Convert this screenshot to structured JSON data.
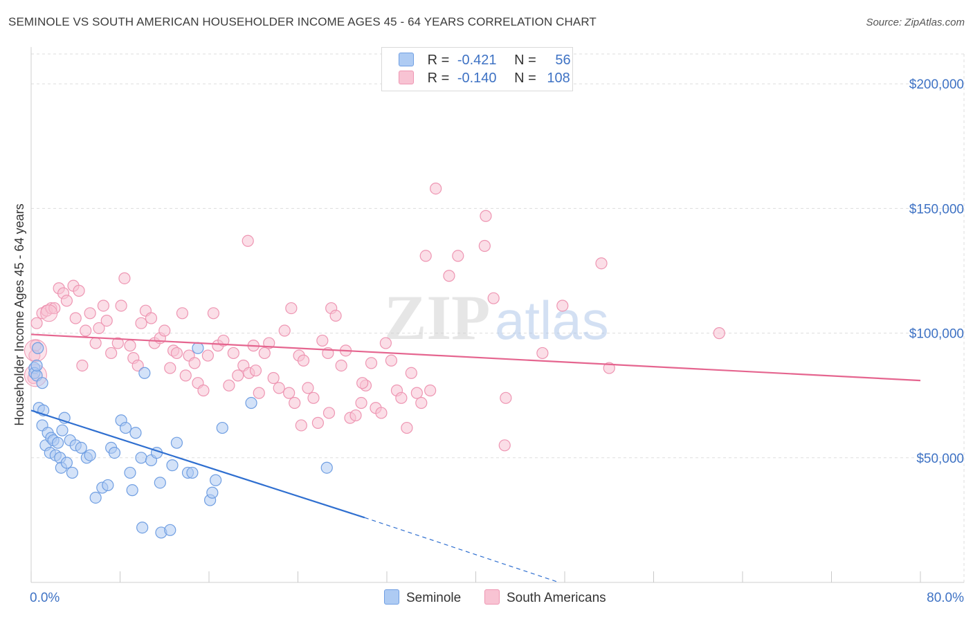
{
  "header": {
    "title": "SEMINOLE VS SOUTH AMERICAN HOUSEHOLDER INCOME AGES 45 - 64 YEARS CORRELATION CHART",
    "source": "Source: ZipAtlas.com"
  },
  "watermark": {
    "zip": "ZIP",
    "atlas": "atlas"
  },
  "legend": {
    "rows": [
      {
        "r_label": "R =",
        "r_value": "-0.421",
        "n_label": "N =",
        "n_value": "56"
      },
      {
        "r_label": "R =",
        "r_value": "-0.140",
        "n_label": "N =",
        "n_value": "108"
      }
    ]
  },
  "bottom_legend": {
    "items": [
      "Seminole",
      "South Americans"
    ]
  },
  "colors": {
    "seminole_fill": "#aecbf3",
    "seminole_stroke": "#6f9ee2",
    "seminole_line": "#2f6fd0",
    "south_fill": "#f8c3d3",
    "south_stroke": "#ee95b2",
    "south_line": "#e5658f",
    "axis_text": "#3e72c4",
    "grid": "#dddddd"
  },
  "chart_data": {
    "type": "scatter",
    "title": "SEMINOLE VS SOUTH AMERICAN HOUSEHOLDER INCOME AGES 45 - 64 YEARS CORRELATION CHART",
    "xlabel": "",
    "ylabel": "Householder Income Ages 45 - 64 years",
    "xlim": [
      0,
      80
    ],
    "ylim": [
      0,
      212000
    ],
    "x_tick_labels": [
      "0.0%",
      "80.0%"
    ],
    "y_ticks": [
      50000,
      100000,
      150000,
      200000
    ],
    "y_tick_labels": [
      "$50,000",
      "$100,000",
      "$150,000",
      "$200,000"
    ],
    "grid": true,
    "legend_position": "top-center",
    "series": [
      {
        "name": "Seminole",
        "r": -0.421,
        "n": 56,
        "trend": {
          "x": [
            0,
            30
          ],
          "y": [
            69000,
            26000
          ],
          "dashed_to": [
            47.5,
            0
          ]
        },
        "points": [
          [
            0.3,
            86000
          ],
          [
            0.3,
            84000
          ],
          [
            0.5,
            83000
          ],
          [
            0.5,
            87000
          ],
          [
            0.6,
            94000
          ],
          [
            0.7,
            70000
          ],
          [
            1.0,
            63000
          ],
          [
            1.0,
            80000
          ],
          [
            1.1,
            69000
          ],
          [
            1.3,
            55000
          ],
          [
            1.5,
            60000
          ],
          [
            1.7,
            52000
          ],
          [
            1.8,
            58000
          ],
          [
            2.0,
            57000
          ],
          [
            2.2,
            51000
          ],
          [
            2.4,
            56000
          ],
          [
            2.6,
            50000
          ],
          [
            2.7,
            46000
          ],
          [
            2.8,
            61000
          ],
          [
            3.0,
            66000
          ],
          [
            3.2,
            48000
          ],
          [
            3.5,
            57000
          ],
          [
            3.7,
            44000
          ],
          [
            4.0,
            55000
          ],
          [
            4.5,
            54000
          ],
          [
            5.0,
            50000
          ],
          [
            5.3,
            51000
          ],
          [
            5.8,
            34000
          ],
          [
            6.4,
            38000
          ],
          [
            6.9,
            39000
          ],
          [
            7.2,
            54000
          ],
          [
            7.5,
            52000
          ],
          [
            8.1,
            65000
          ],
          [
            8.5,
            62000
          ],
          [
            8.9,
            44000
          ],
          [
            9.1,
            37000
          ],
          [
            9.4,
            60000
          ],
          [
            9.9,
            50000
          ],
          [
            10.2,
            84000
          ],
          [
            10.8,
            49000
          ],
          [
            11.3,
            52000
          ],
          [
            11.6,
            40000
          ],
          [
            12.7,
            47000
          ],
          [
            13.1,
            56000
          ],
          [
            14.1,
            44000
          ],
          [
            14.5,
            44000
          ],
          [
            15.0,
            94000
          ],
          [
            16.1,
            33000
          ],
          [
            16.3,
            36000
          ],
          [
            16.6,
            41000
          ],
          [
            17.2,
            62000
          ],
          [
            19.8,
            72000
          ],
          [
            26.6,
            46000
          ],
          [
            11.7,
            20000
          ],
          [
            10.0,
            22000
          ],
          [
            12.5,
            21000
          ]
        ]
      },
      {
        "name": "South Americans",
        "r": -0.14,
        "n": 108,
        "trend": {
          "x": [
            0,
            80
          ],
          "y": [
            99500,
            81000
          ]
        },
        "points": [
          [
            0.2,
            82000
          ],
          [
            0.3,
            91000
          ],
          [
            0.4,
            95000
          ],
          [
            0.5,
            104000
          ],
          [
            1.0,
            108000
          ],
          [
            1.4,
            109000
          ],
          [
            1.8,
            110000
          ],
          [
            2.1,
            110000
          ],
          [
            2.5,
            118000
          ],
          [
            2.9,
            116000
          ],
          [
            3.2,
            113000
          ],
          [
            3.8,
            119000
          ],
          [
            4.0,
            106000
          ],
          [
            4.3,
            117000
          ],
          [
            4.6,
            87000
          ],
          [
            4.9,
            101000
          ],
          [
            5.3,
            108000
          ],
          [
            5.8,
            96000
          ],
          [
            6.1,
            102000
          ],
          [
            6.5,
            111000
          ],
          [
            6.8,
            105000
          ],
          [
            7.2,
            92000
          ],
          [
            7.8,
            96000
          ],
          [
            8.1,
            111000
          ],
          [
            8.4,
            122000
          ],
          [
            8.9,
            95000
          ],
          [
            9.2,
            90000
          ],
          [
            9.6,
            87000
          ],
          [
            9.9,
            104000
          ],
          [
            10.3,
            109000
          ],
          [
            10.8,
            106000
          ],
          [
            11.1,
            96000
          ],
          [
            11.6,
            98000
          ],
          [
            12.0,
            101000
          ],
          [
            12.5,
            86000
          ],
          [
            12.8,
            93000
          ],
          [
            13.1,
            92000
          ],
          [
            13.6,
            108000
          ],
          [
            13.9,
            83000
          ],
          [
            14.2,
            91000
          ],
          [
            14.7,
            88000
          ],
          [
            15.0,
            80000
          ],
          [
            15.5,
            77000
          ],
          [
            15.9,
            91000
          ],
          [
            16.4,
            108000
          ],
          [
            16.8,
            95000
          ],
          [
            17.3,
            97000
          ],
          [
            17.8,
            79000
          ],
          [
            18.2,
            92000
          ],
          [
            18.6,
            83000
          ],
          [
            19.1,
            87000
          ],
          [
            19.6,
            84000
          ],
          [
            20.0,
            95000
          ],
          [
            20.5,
            76000
          ],
          [
            21.0,
            92000
          ],
          [
            21.4,
            96000
          ],
          [
            21.8,
            82000
          ],
          [
            22.3,
            78000
          ],
          [
            22.8,
            101000
          ],
          [
            23.2,
            76000
          ],
          [
            23.7,
            72000
          ],
          [
            24.1,
            91000
          ],
          [
            24.5,
            89000
          ],
          [
            24.9,
            78000
          ],
          [
            25.4,
            74000
          ],
          [
            25.8,
            64000
          ],
          [
            26.2,
            97000
          ],
          [
            26.7,
            92000
          ],
          [
            27.0,
            110000
          ],
          [
            27.4,
            107000
          ],
          [
            27.9,
            87000
          ],
          [
            28.3,
            93000
          ],
          [
            28.7,
            66000
          ],
          [
            29.2,
            67000
          ],
          [
            29.7,
            72000
          ],
          [
            30.1,
            79000
          ],
          [
            30.6,
            88000
          ],
          [
            31.0,
            70000
          ],
          [
            31.5,
            68000
          ],
          [
            31.9,
            96000
          ],
          [
            32.4,
            89000
          ],
          [
            32.9,
            77000
          ],
          [
            33.3,
            74000
          ],
          [
            33.8,
            62000
          ],
          [
            34.2,
            84000
          ],
          [
            34.7,
            76000
          ],
          [
            35.1,
            72000
          ],
          [
            35.5,
            131000
          ],
          [
            35.9,
            77000
          ],
          [
            36.4,
            158000
          ],
          [
            37.6,
            123000
          ],
          [
            38.4,
            131000
          ],
          [
            40.8,
            135000
          ],
          [
            40.9,
            147000
          ],
          [
            41.6,
            114000
          ],
          [
            42.6,
            55000
          ],
          [
            42.7,
            74000
          ],
          [
            46.0,
            92000
          ],
          [
            47.8,
            111000
          ],
          [
            51.3,
            128000
          ],
          [
            52.0,
            86000
          ],
          [
            61.9,
            100000
          ],
          [
            19.5,
            137000
          ],
          [
            20.2,
            85000
          ],
          [
            23.4,
            110000
          ],
          [
            24.3,
            63000
          ],
          [
            26.8,
            68000
          ],
          [
            29.8,
            80000
          ]
        ]
      }
    ]
  }
}
